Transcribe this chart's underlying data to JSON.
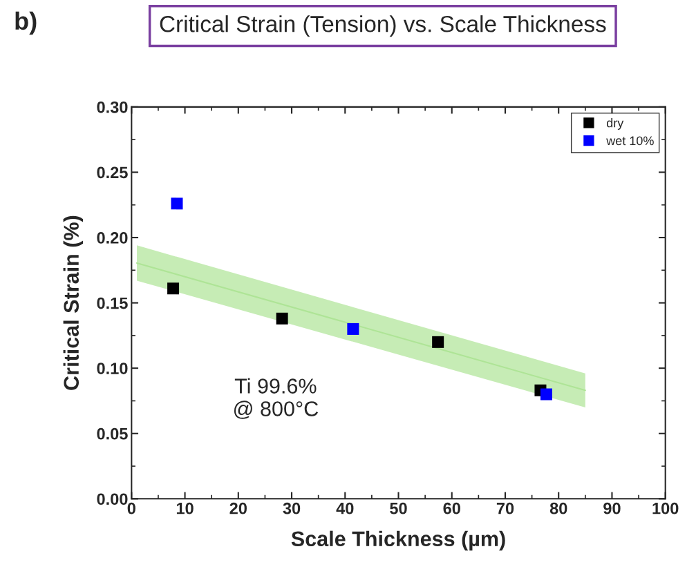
{
  "chart_data": {
    "type": "scatter",
    "title": "Critical Strain (Tension) vs. Scale Thickness",
    "xlabel": "Scale Thickness (µm)",
    "ylabel": "Critical Strain (%)",
    "annotations": [
      "b)",
      "Ti 99.6%\n@ 800°C"
    ],
    "xlim": [
      0,
      100
    ],
    "xticks": [
      0,
      10,
      20,
      30,
      40,
      50,
      60,
      70,
      80,
      90,
      100
    ],
    "ylim": [
      0,
      0.3
    ],
    "yticks": [
      {
        "value": 0,
        "label": "0.00"
      },
      {
        "value": 0.05,
        "label": "0.05"
      },
      {
        "value": 0.1,
        "label": "0.10"
      },
      {
        "value": 0.15,
        "label": "0.15"
      },
      {
        "value": 0.2,
        "label": "0.20"
      },
      {
        "value": 0.25,
        "label": "0.25"
      },
      {
        "value": 0.3,
        "label": "0.30"
      }
    ],
    "series": [
      {
        "type": "line",
        "color": "#aee496",
        "x": [
          1,
          85
        ],
        "values": [
          0.1805,
          0.083
        ],
        "lower": [
          0.167,
          0.07
        ],
        "upper": [
          0.194,
          0.096
        ],
        "marker": "none"
      },
      {
        "name": "dry",
        "color": "#000000",
        "x": [
          7.8,
          28.2,
          57.4,
          76.6
        ],
        "values": [
          0.161,
          0.138,
          0.12,
          0.083
        ]
      },
      {
        "name": "wet 10%",
        "color": "#0000ff",
        "x": [
          8.5,
          41.5,
          77.7
        ],
        "values": [
          0.226,
          0.13,
          0.08
        ]
      }
    ],
    "marker": "square",
    "legend": "top right",
    "grid": false
  }
}
